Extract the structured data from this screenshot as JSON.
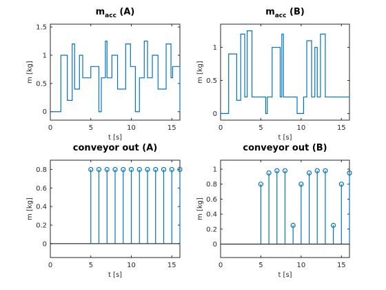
{
  "figure": {
    "background": "#ffffff",
    "series_color": "#0072bd",
    "axis_color": "#262626"
  },
  "chart_data": [
    {
      "id": "m-acc-a",
      "type": "line",
      "step": true,
      "title_main": "m",
      "title_sub": "acc",
      "title_suffix": " (A)",
      "xlabel": "t [s]",
      "ylabel": "m [kg]",
      "xlim": [
        0,
        16
      ],
      "ylim": [
        -0.15,
        1.55
      ],
      "xticks": [
        0,
        5,
        10,
        15
      ],
      "yticks": [
        0,
        0.5,
        1,
        1.5
      ],
      "yticklabels": [
        "0",
        "0.5",
        "1",
        "1.5"
      ],
      "series": [
        {
          "x": [
            0,
            1.3,
            1.3,
            2.1,
            2.1,
            2.7,
            2.7,
            3.0,
            3.0,
            3.6,
            3.6,
            4.0,
            4.0,
            5.0,
            5.0,
            6.0,
            6.0,
            6.3,
            6.3,
            6.8,
            6.8,
            7.0,
            7.0,
            7.6,
            7.6,
            8.3,
            8.3,
            9.3,
            9.3,
            9.9,
            9.9,
            10.5,
            10.5,
            11.0,
            11.0,
            11.6,
            11.6,
            12.0,
            12.0,
            12.6,
            12.6,
            13.3,
            13.3,
            14.3,
            14.3,
            14.9,
            14.9,
            15.1,
            15.1,
            16.0,
            16.0
          ],
          "y": [
            0,
            0,
            1.0,
            1.0,
            0.2,
            0.2,
            1.2,
            1.2,
            0.4,
            0.4,
            1.0,
            1.0,
            0.6,
            0.6,
            0.8,
            0.8,
            0.0,
            0.0,
            0.6,
            0.6,
            1.25,
            1.25,
            0.6,
            0.6,
            1.0,
            1.0,
            0.4,
            0.4,
            1.2,
            1.2,
            0.8,
            0.8,
            0.0,
            0.0,
            0.6,
            0.6,
            1.25,
            1.25,
            0.6,
            0.6,
            1.0,
            1.0,
            0.4,
            0.4,
            1.2,
            1.2,
            0.6,
            0.6,
            0.8,
            0.8,
            0.0
          ]
        }
      ]
    },
    {
      "id": "m-acc-b",
      "type": "line",
      "step": true,
      "title_main": "m",
      "title_sub": "acc",
      "title_suffix": " (B)",
      "xlabel": "t [s]",
      "ylabel": "m [kg]",
      "xlim": [
        0,
        16
      ],
      "ylim": [
        -0.1,
        1.35
      ],
      "xticks": [
        0,
        5,
        10,
        15
      ],
      "yticks": [
        0,
        0.5,
        1
      ],
      "yticklabels": [
        "0",
        "0.5",
        "1"
      ],
      "series": [
        {
          "x": [
            0,
            1.0,
            1.0,
            2.0,
            2.0,
            2.5,
            2.5,
            3.0,
            3.0,
            3.3,
            3.3,
            3.9,
            3.9,
            5.6,
            5.6,
            5.8,
            5.8,
            6.4,
            6.4,
            7.4,
            7.4,
            7.6,
            7.6,
            7.8,
            7.8,
            9.5,
            9.5,
            10.3,
            10.3,
            10.7,
            10.7,
            11.3,
            11.3,
            11.7,
            11.7,
            12.0,
            12.0,
            12.4,
            12.4,
            13.0,
            13.0,
            16.0
          ],
          "y": [
            0,
            0,
            0.9,
            0.9,
            0.2,
            0.2,
            1.2,
            1.2,
            0.25,
            0.25,
            1.25,
            1.25,
            0.25,
            0.25,
            0.0,
            0.0,
            0.25,
            0.25,
            1.0,
            1.0,
            0.25,
            0.25,
            1.2,
            1.2,
            0.25,
            0.25,
            0.0,
            0.0,
            0.25,
            0.25,
            1.1,
            1.1,
            0.25,
            0.25,
            1.0,
            1.0,
            0.25,
            0.25,
            1.2,
            1.2,
            0.25,
            0.25
          ]
        }
      ]
    },
    {
      "id": "conveyor-out-a",
      "type": "stem",
      "title": "conveyor out (A)",
      "xlabel": "t [s]",
      "ylabel": "m [kg]",
      "xlim": [
        0,
        16
      ],
      "ylim": [
        -0.15,
        0.9
      ],
      "xticks": [
        0,
        5,
        10,
        15
      ],
      "yticks": [
        0,
        0.2,
        0.4,
        0.6,
        0.8
      ],
      "yticklabels": [
        "0",
        "0.2",
        "0.4",
        "0.6",
        "0.8"
      ],
      "series": [
        {
          "x": [
            5,
            6,
            7,
            8,
            9,
            10,
            11,
            12,
            13,
            14,
            15,
            16
          ],
          "y": [
            0.8,
            0.8,
            0.8,
            0.8,
            0.8,
            0.8,
            0.8,
            0.8,
            0.8,
            0.8,
            0.8,
            0.8
          ]
        }
      ]
    },
    {
      "id": "conveyor-out-b",
      "type": "stem",
      "title": "conveyor out (B)",
      "xlabel": "t [s]",
      "ylabel": "m [kg]",
      "xlim": [
        0,
        16
      ],
      "ylim": [
        -0.18,
        1.12
      ],
      "xticks": [
        0,
        5,
        10,
        15
      ],
      "yticks": [
        0,
        0.2,
        0.4,
        0.6,
        0.8,
        1
      ],
      "yticklabels": [
        "0",
        "0.2",
        "0.4",
        "0.6",
        "0.8",
        "1"
      ],
      "series": [
        {
          "x": [
            5,
            6,
            7,
            8,
            9,
            10,
            11,
            12,
            13,
            14,
            15,
            16
          ],
          "y": [
            0.8,
            0.95,
            0.98,
            0.98,
            0.25,
            0.8,
            0.95,
            0.98,
            0.98,
            0.25,
            0.8,
            0.95
          ]
        }
      ]
    }
  ]
}
